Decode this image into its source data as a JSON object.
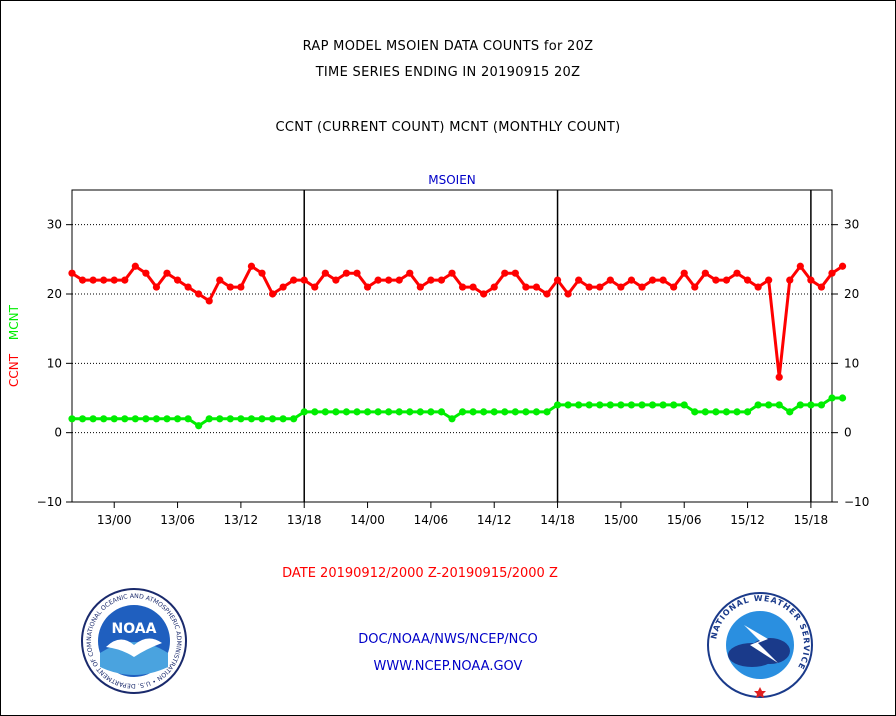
{
  "titles": {
    "line1": "RAP MODEL MSOIEN DATA COUNTS for 20Z",
    "line2": "TIME SERIES ENDING IN 20190915 20Z",
    "line3": "CCNT (CURRENT COUNT) MCNT (MONTHLY COUNT)"
  },
  "date_range": "DATE 20190912/2000 Z-20190915/2000 Z",
  "footer": {
    "line1": "DOC/NOAA/NWS/NCEP/NCO",
    "line2": "WWW.NCEP.NOAA.GOV"
  },
  "logos": {
    "left": {
      "text": "NOAA",
      "ring_text": "NATIONAL OCEANIC AND ATMOSPHERIC ADMINISTRATION • U.S. DEPARTMENT OF COMMERCE"
    },
    "right": {
      "ring_text": "NATIONAL WEATHER SERVICE"
    }
  },
  "colors": {
    "ccnt": "#ff0000",
    "mcnt": "#00ee00",
    "title_plot": "#0000c8",
    "footer": "#0000c8"
  },
  "chart_data": {
    "type": "line",
    "title": "MSOIEN",
    "ylabel_parts": [
      {
        "text": "CCNT",
        "color": "#ff0000"
      },
      {
        "text": "MCNT",
        "color": "#00ee00"
      }
    ],
    "ylim": [
      -10,
      35
    ],
    "yticks": [
      -10,
      0,
      10,
      20,
      30
    ],
    "x_tick_labels": [
      "13/00",
      "13/06",
      "13/12",
      "13/18",
      "14/00",
      "14/06",
      "14/12",
      "14/18",
      "15/00",
      "15/06",
      "15/12",
      "15/18"
    ],
    "x_tick_hours": [
      4,
      10,
      16,
      22,
      28,
      34,
      40,
      46,
      52,
      58,
      64,
      70
    ],
    "xlim_hours": [
      0,
      72
    ],
    "vertical_dividers_hours": [
      22,
      46,
      70
    ],
    "grid": "horizontal dotted",
    "series": [
      {
        "name": "CCNT",
        "color": "#ff0000",
        "values": [
          23,
          22,
          22,
          22,
          22,
          22,
          24,
          23,
          21,
          23,
          22,
          21,
          20,
          19,
          22,
          21,
          21,
          24,
          23,
          20,
          21,
          22,
          22,
          21,
          23,
          22,
          23,
          23,
          21,
          22,
          22,
          22,
          23,
          21,
          22,
          22,
          23,
          21,
          21,
          20,
          21,
          23,
          23,
          21,
          21,
          20,
          22,
          20,
          22,
          21,
          21,
          22,
          21,
          22,
          21,
          22,
          22,
          21,
          23,
          21,
          23,
          22,
          22,
          23,
          22,
          21,
          22,
          8,
          22,
          24,
          22,
          21,
          23,
          24
        ]
      },
      {
        "name": "MCNT",
        "color": "#00ee00",
        "values": [
          2,
          2,
          2,
          2,
          2,
          2,
          2,
          2,
          2,
          2,
          2,
          2,
          1,
          2,
          2,
          2,
          2,
          2,
          2,
          2,
          2,
          2,
          3,
          3,
          3,
          3,
          3,
          3,
          3,
          3,
          3,
          3,
          3,
          3,
          3,
          3,
          2,
          3,
          3,
          3,
          3,
          3,
          3,
          3,
          3,
          3,
          4,
          4,
          4,
          4,
          4,
          4,
          4,
          4,
          4,
          4,
          4,
          4,
          4,
          3,
          3,
          3,
          3,
          3,
          3,
          4,
          4,
          4,
          3,
          4,
          4,
          4,
          5,
          5
        ]
      }
    ]
  }
}
